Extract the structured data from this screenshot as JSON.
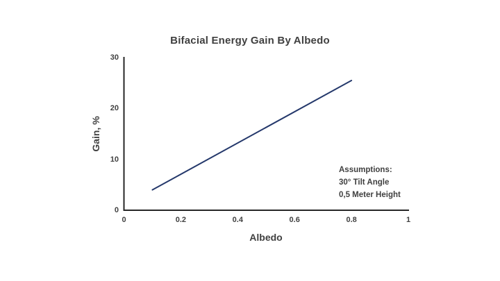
{
  "chart_data": {
    "type": "line",
    "title": "Bifacial Energy Gain By Albedo",
    "xlabel": "Albedo",
    "ylabel": "Gain, %",
    "x": [
      0.1,
      0.8
    ],
    "series": [
      {
        "name": "Bifacial energy gain",
        "values": [
          4,
          25.5
        ]
      }
    ],
    "xlim": [
      0,
      1
    ],
    "ylim": [
      0,
      30
    ],
    "xticks": [
      0,
      0.2,
      0.4,
      0.6,
      0.8,
      1
    ],
    "yticks": [
      0,
      10,
      20,
      30
    ],
    "grid": false,
    "legend": false,
    "line_color": "#24386b",
    "axis_color": "#262626",
    "text_color": "#404040"
  },
  "annotation": {
    "lines": [
      "Assumptions:",
      "30° Tilt Angle",
      "0,5 Meter Height"
    ]
  }
}
